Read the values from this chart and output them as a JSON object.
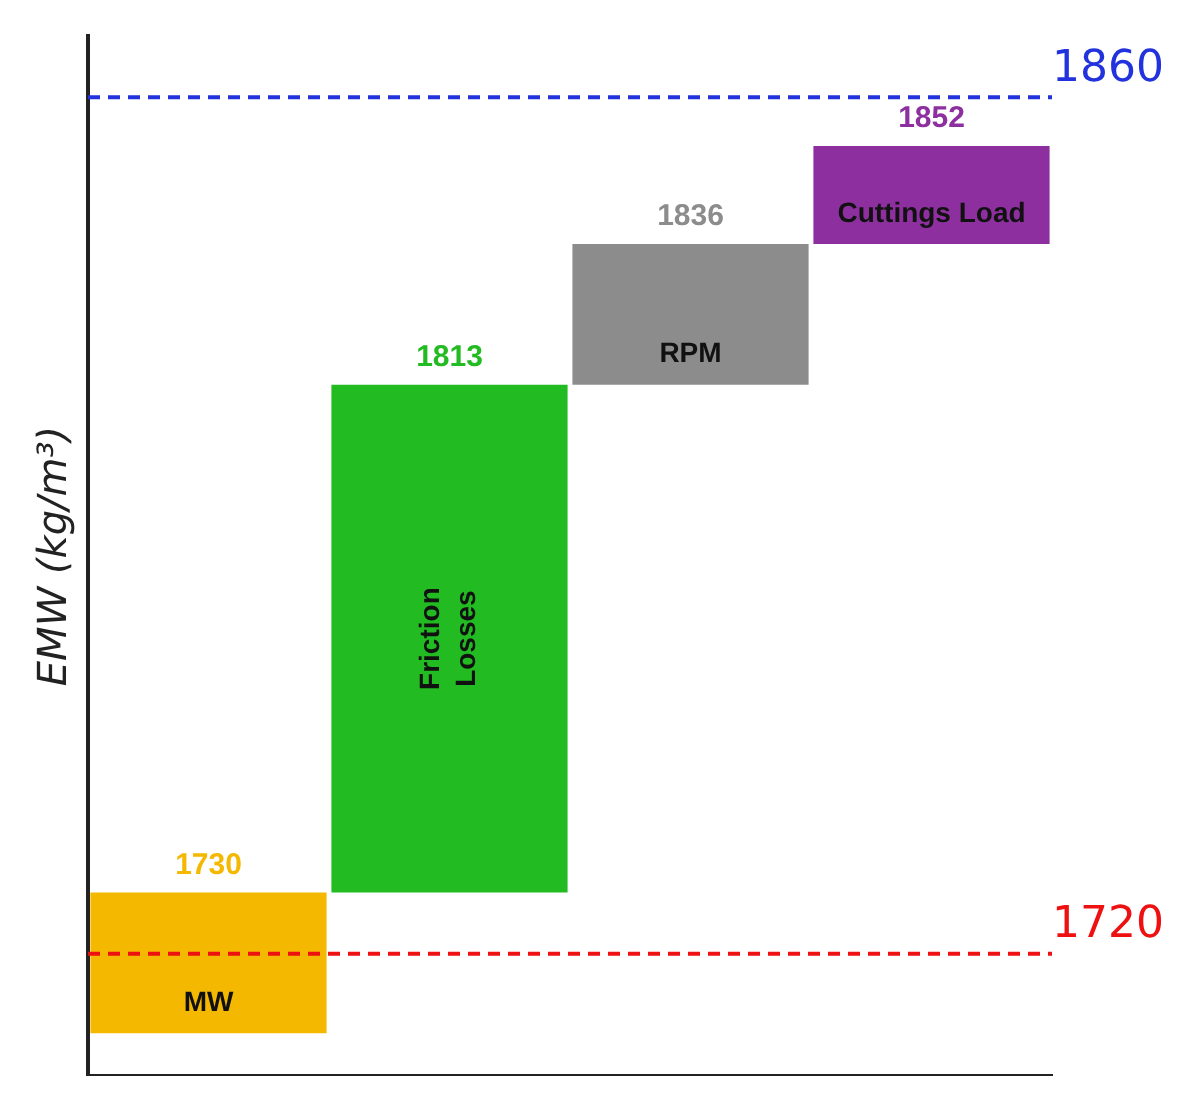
{
  "chart_data": {
    "type": "bar",
    "ylabel": "EMW (kg/m³)",
    "categories": [
      "MW",
      "Friction Losses",
      "RPM",
      "Cuttings Load"
    ],
    "base": [
      1707,
      1730,
      1813,
      1836
    ],
    "values": [
      23,
      83,
      23,
      16
    ],
    "colors": [
      "#f5b800",
      "#22bb22",
      "#8c8c8c",
      "#8e2fa0"
    ],
    "value_labels": [
      "1730",
      "1813",
      "1836",
      "1852"
    ],
    "ylim": [
      1700,
      1870
    ],
    "tick_labels": false,
    "grid": false,
    "legend": false,
    "ref_lines": [
      {
        "axis": "y",
        "value": 1860,
        "label": "1860",
        "color": "#2233dd",
        "line_style": "dashed"
      },
      {
        "axis": "y",
        "value": 1720,
        "label": "1720",
        "color": "#ee1111",
        "line_style": "dashed"
      }
    ]
  }
}
